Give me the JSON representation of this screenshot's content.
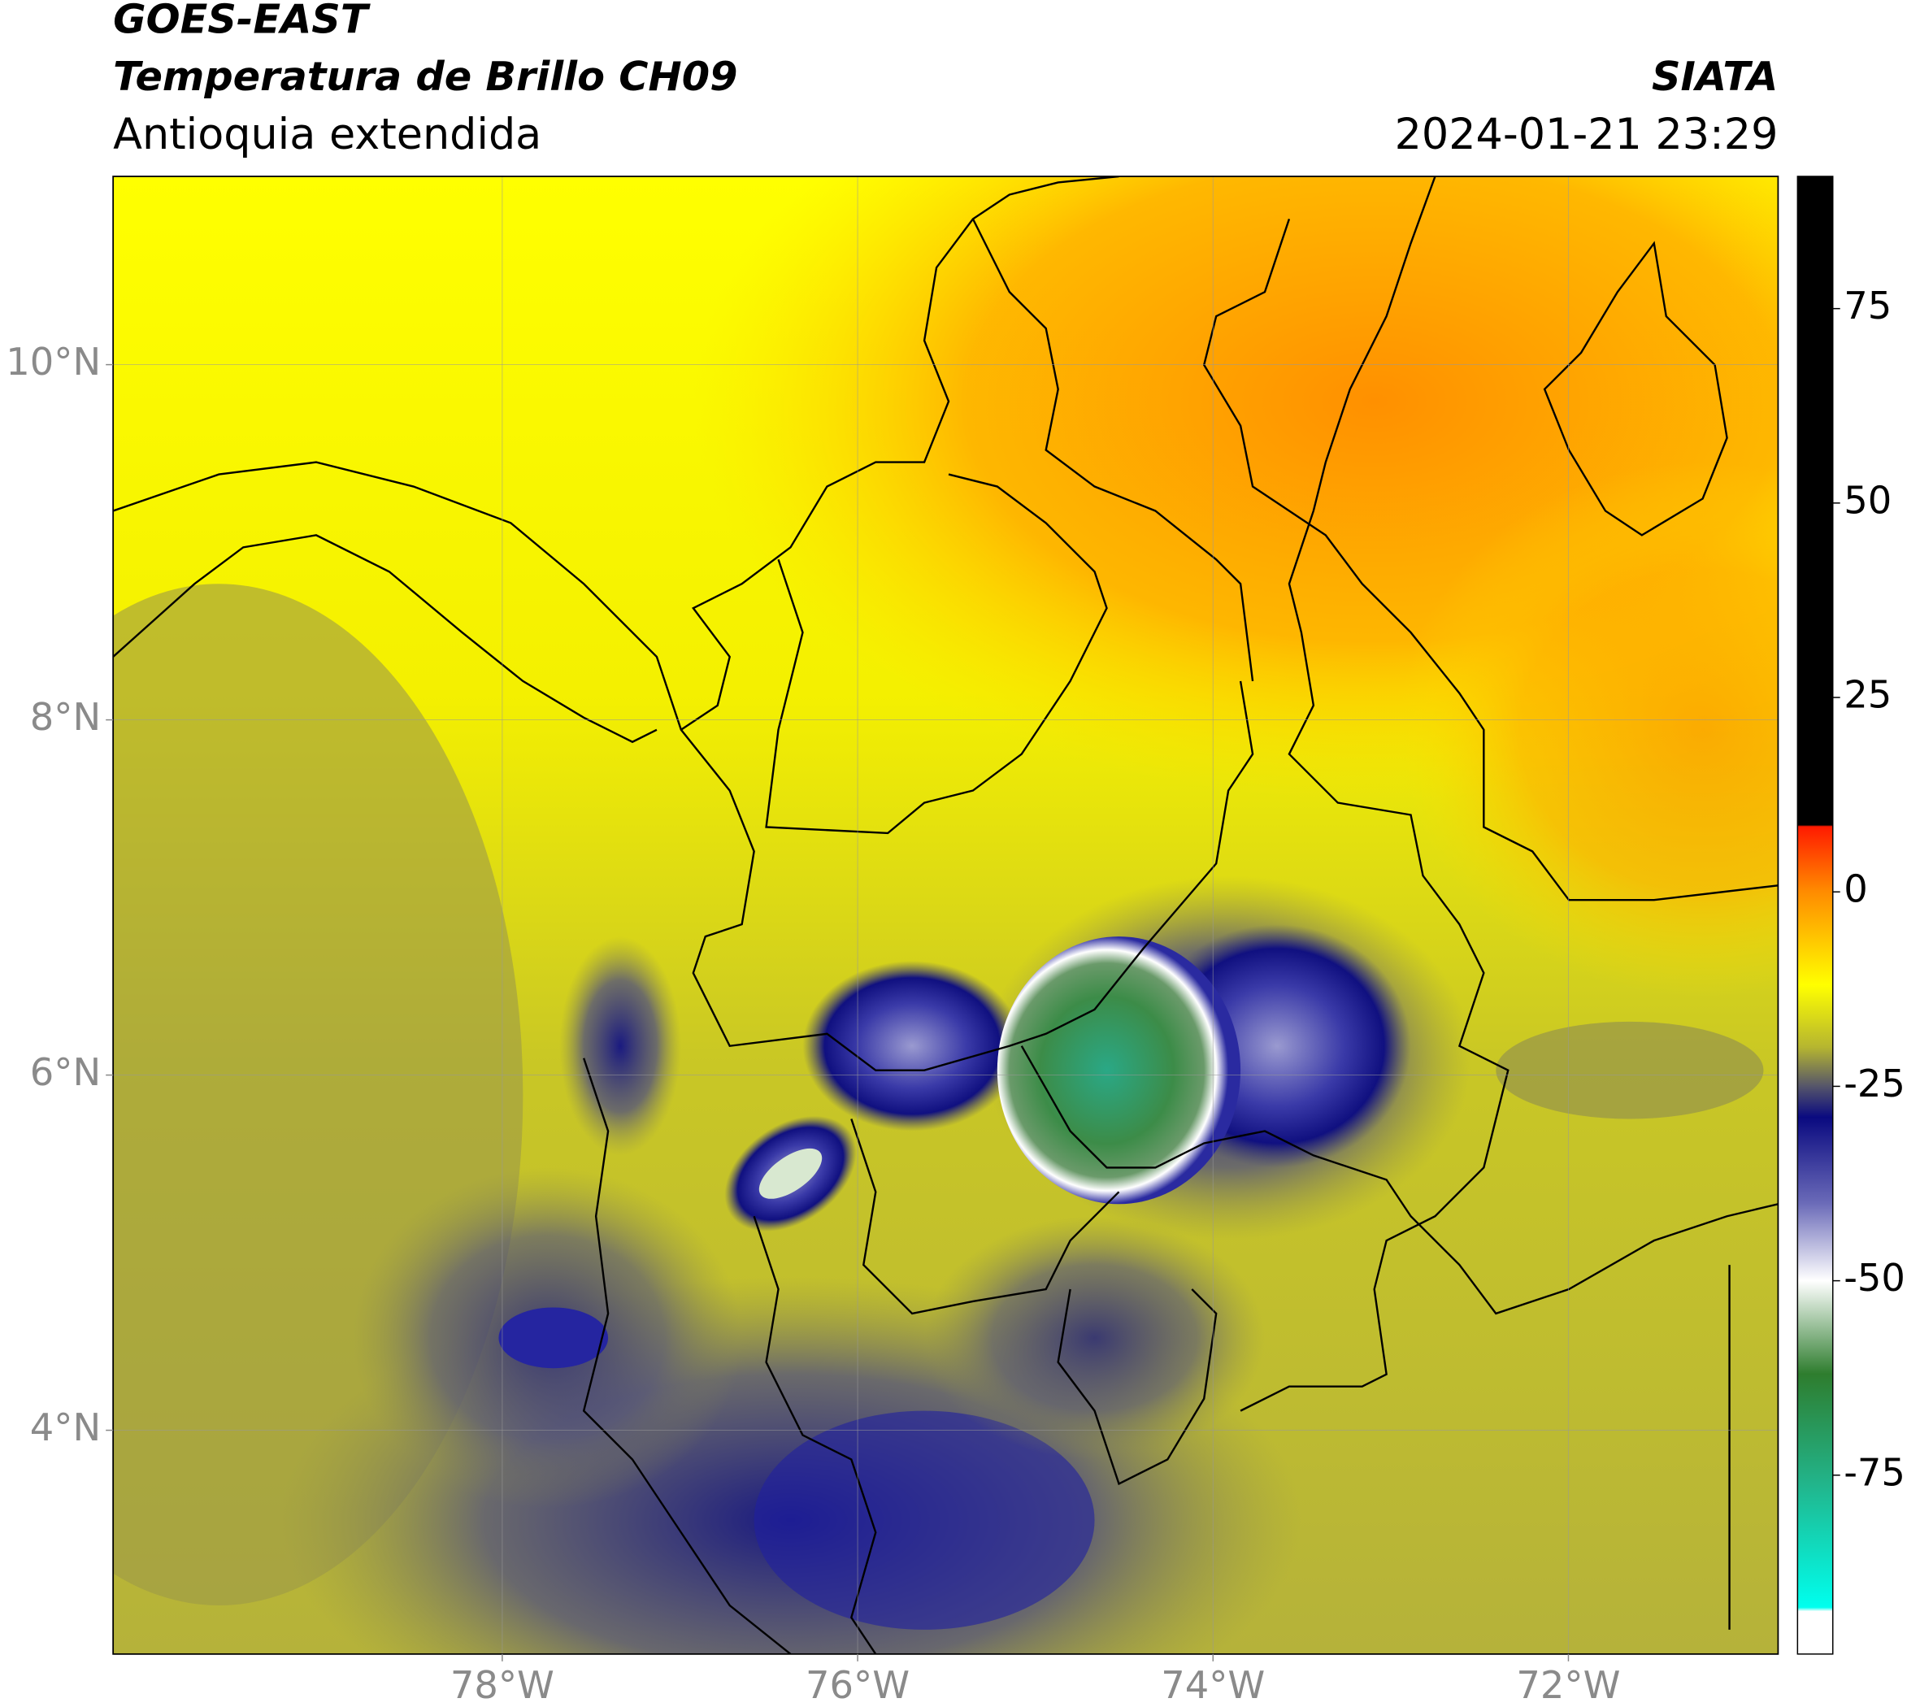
{
  "header": {
    "title": "GOES-EAST",
    "subtitle": "Temperatura de Brillo CH09",
    "region": "Antioquia extendida",
    "source": "SIATA",
    "datetime": "2024-01-21 23:29"
  },
  "map": {
    "lonlim": [
      -80.19,
      -70.82
    ],
    "latlim": [
      2.74,
      11.06
    ],
    "grid": true,
    "lon_ticks": [
      {
        "value": -78,
        "label": "78°W"
      },
      {
        "value": -76,
        "label": "76°W"
      },
      {
        "value": -74,
        "label": "74°W"
      },
      {
        "value": -72,
        "label": "72°W"
      }
    ],
    "lat_ticks": [
      {
        "value": 4,
        "label": "4°N"
      },
      {
        "value": 6,
        "label": "6°N"
      },
      {
        "value": 8,
        "label": "8°N"
      },
      {
        "value": 10,
        "label": "10°N"
      }
    ]
  },
  "colorbar": {
    "lim": [
      -98,
      92
    ],
    "ticks": [
      75,
      50,
      25,
      0,
      -25,
      -50,
      -75
    ],
    "stops": [
      {
        "value": 92,
        "color": "#000000"
      },
      {
        "value": 8.6,
        "color": "#000000"
      },
      {
        "value": 8.4,
        "color": "#ff1a00"
      },
      {
        "value": 0,
        "color": "#ff8c00"
      },
      {
        "value": -12,
        "color": "#ffff00"
      },
      {
        "value": -20,
        "color": "#b5b530"
      },
      {
        "value": -25,
        "color": "#55556a"
      },
      {
        "value": -29,
        "color": "#0a0a80"
      },
      {
        "value": -40,
        "color": "#6a6ab8"
      },
      {
        "value": -50,
        "color": "#ffffff"
      },
      {
        "value": -62,
        "color": "#2e7d2e"
      },
      {
        "value": -76,
        "color": "#22b48a"
      },
      {
        "value": -92,
        "color": "#00ffee"
      },
      {
        "value": -92.5,
        "color": "#ffffff"
      },
      {
        "value": -98,
        "color": "#ffffff"
      }
    ]
  }
}
